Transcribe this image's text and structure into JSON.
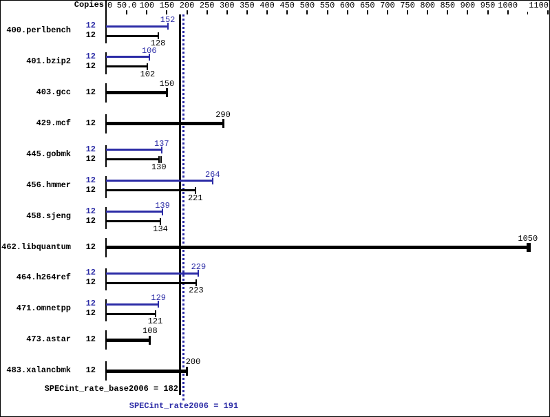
{
  "header": {
    "copies_label": "Copies"
  },
  "chart_data": {
    "type": "bar",
    "orientation": "horizontal",
    "axis": {
      "min": 0,
      "max": 1100,
      "position": "top",
      "ticks": [
        {
          "value": 0,
          "label": "0"
        },
        {
          "value": 50,
          "label": "50.0"
        },
        {
          "value": 100,
          "label": "100"
        },
        {
          "value": 150,
          "label": "150"
        },
        {
          "value": 200,
          "label": "200"
        },
        {
          "value": 250,
          "label": "250"
        },
        {
          "value": 300,
          "label": "300"
        },
        {
          "value": 350,
          "label": "350"
        },
        {
          "value": 400,
          "label": "400"
        },
        {
          "value": 450,
          "label": "450"
        },
        {
          "value": 500,
          "label": "500"
        },
        {
          "value": 550,
          "label": "550"
        },
        {
          "value": 600,
          "label": "600"
        },
        {
          "value": 650,
          "label": "650"
        },
        {
          "value": 700,
          "label": "700"
        },
        {
          "value": 750,
          "label": "750"
        },
        {
          "value": 800,
          "label": "800"
        },
        {
          "value": 850,
          "label": "850"
        },
        {
          "value": 900,
          "label": "900"
        },
        {
          "value": 950,
          "label": "950"
        },
        {
          "value": 1000,
          "label": "1000"
        },
        {
          "value": 1050,
          "label": "",
          "minor": true
        },
        {
          "value": 1100,
          "label": "1100"
        }
      ]
    },
    "colors": {
      "base": "#000000",
      "peak": "#2b2ba6"
    },
    "benchmarks": [
      {
        "name": "400.perlbench",
        "copies": "12",
        "peak": 152,
        "base": 128
      },
      {
        "name": "401.bzip2",
        "copies": "12",
        "peak": 106,
        "base": 102
      },
      {
        "name": "403.gcc",
        "copies": "12",
        "peak": null,
        "base": 150
      },
      {
        "name": "429.mcf",
        "copies": "12",
        "peak": null,
        "base": 290
      },
      {
        "name": "445.gobmk",
        "copies": "12",
        "peak": 137,
        "base": 130,
        "base_double_cap": true
      },
      {
        "name": "456.hmmer",
        "copies": "12",
        "peak": 264,
        "base": 221
      },
      {
        "name": "458.sjeng",
        "copies": "12",
        "peak": 139,
        "base": 134
      },
      {
        "name": "462.libquantum",
        "copies": "12",
        "peak": null,
        "base": 1050,
        "base_double_cap": true
      },
      {
        "name": "464.h264ref",
        "copies": "12",
        "peak": 229,
        "base": 223
      },
      {
        "name": "471.omnetpp",
        "copies": "12",
        "peak": 129,
        "base": 121
      },
      {
        "name": "473.astar",
        "copies": "12",
        "peak": null,
        "base": 108
      },
      {
        "name": "483.xalancbmk",
        "copies": "12",
        "peak": null,
        "base": 200
      }
    ],
    "reference_lines": [
      {
        "value": 182,
        "color": "#000000",
        "style": "solid"
      },
      {
        "value": 191,
        "color": "#2b2ba6",
        "style": "dotted"
      }
    ],
    "summary": {
      "base_text": "SPECint_rate_base2006 = 182",
      "base_value": 182,
      "peak_text": "SPECint_rate2006 = 191",
      "peak_value": 191
    }
  }
}
